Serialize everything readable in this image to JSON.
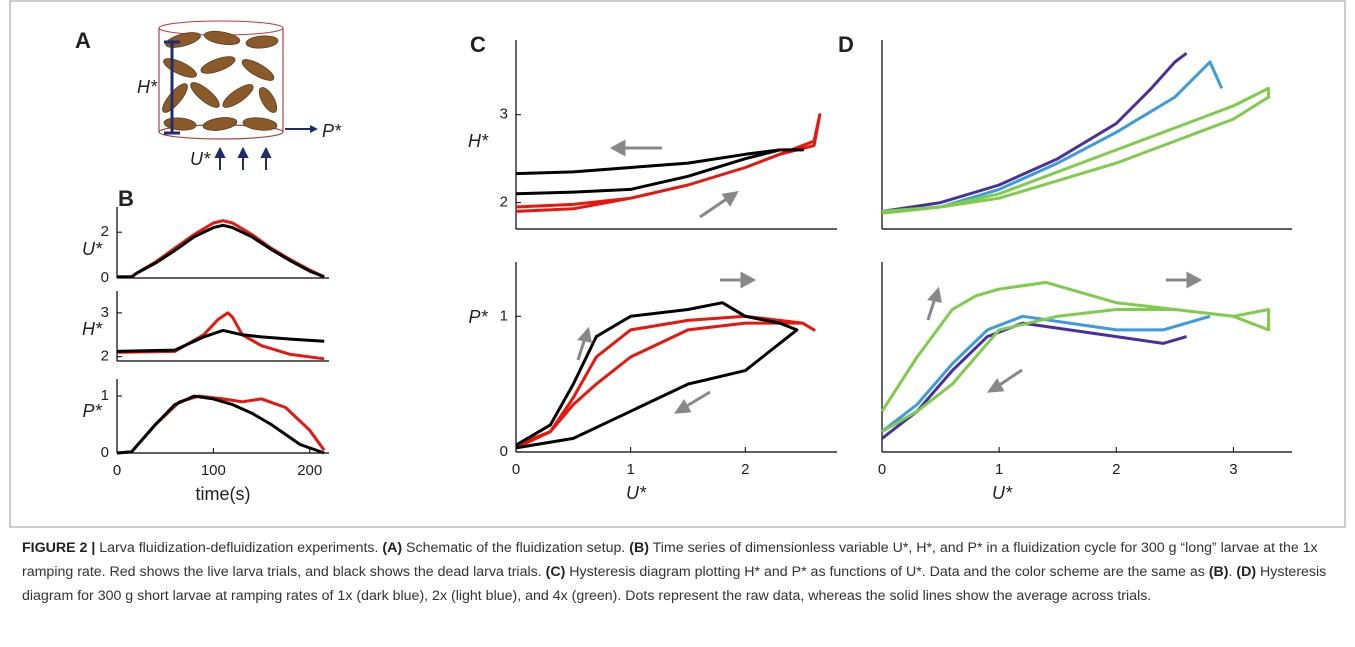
{
  "figure": {
    "panel_labels": [
      "A",
      "B",
      "C",
      "D"
    ],
    "schematic": {
      "height_label": "H*",
      "pressure_label": "P*",
      "flow_label": "U*"
    }
  },
  "chart_data": [
    {
      "type": "line",
      "ylabel": "U*",
      "xlim": [
        0,
        220
      ],
      "ylim": [
        0,
        3.1
      ],
      "yticks": [
        0,
        2
      ],
      "series": [
        {
          "color": "#e8160c",
          "x": [
            0,
            15,
            20,
            40,
            60,
            80,
            100,
            110,
            120,
            140,
            160,
            180,
            200,
            215
          ],
          "values": [
            0.05,
            0.05,
            0.2,
            0.7,
            1.3,
            1.9,
            2.4,
            2.5,
            2.4,
            1.9,
            1.3,
            0.8,
            0.35,
            0.05
          ]
        },
        {
          "color": "#000000",
          "x": [
            0,
            15,
            20,
            40,
            60,
            80,
            100,
            110,
            120,
            140,
            160,
            180,
            200,
            215
          ],
          "values": [
            0.05,
            0.05,
            0.2,
            0.65,
            1.2,
            1.8,
            2.2,
            2.3,
            2.2,
            1.8,
            1.25,
            0.75,
            0.3,
            0.05
          ]
        }
      ]
    },
    {
      "type": "line",
      "ylabel": "H*",
      "xlim": [
        0,
        220
      ],
      "ylim": [
        1.9,
        3.5
      ],
      "yticks": [
        2,
        3
      ],
      "series": [
        {
          "color": "#e8160c",
          "x": [
            0,
            60,
            90,
            105,
            115,
            120,
            130,
            150,
            180,
            215
          ],
          "values": [
            2.1,
            2.12,
            2.5,
            2.85,
            3.0,
            2.9,
            2.5,
            2.25,
            2.05,
            1.95
          ]
        },
        {
          "color": "#000000",
          "x": [
            0,
            60,
            90,
            110,
            130,
            150,
            180,
            215
          ],
          "values": [
            2.12,
            2.15,
            2.45,
            2.6,
            2.5,
            2.45,
            2.4,
            2.35
          ]
        }
      ]
    },
    {
      "type": "line",
      "ylabel": "P*",
      "xlim": [
        0,
        220
      ],
      "ylim": [
        0,
        1.3
      ],
      "yticks": [
        0,
        1
      ],
      "xticks": [
        0,
        100,
        200
      ],
      "xlabel": "time(s)",
      "series": [
        {
          "color": "#e8160c",
          "x": [
            0,
            15,
            40,
            65,
            85,
            110,
            130,
            150,
            175,
            200,
            215
          ],
          "values": [
            0,
            0.02,
            0.5,
            0.9,
            1.0,
            0.95,
            0.9,
            0.95,
            0.8,
            0.4,
            0.05
          ]
        },
        {
          "color": "#000000",
          "x": [
            0,
            15,
            40,
            60,
            80,
            100,
            120,
            140,
            160,
            190,
            215
          ],
          "values": [
            0,
            0.02,
            0.5,
            0.85,
            1.0,
            0.95,
            0.85,
            0.7,
            0.5,
            0.15,
            0
          ]
        }
      ]
    },
    {
      "type": "line",
      "ylabel": "H*",
      "xlim": [
        0,
        2.8
      ],
      "ylim": [
        1.7,
        3.85
      ],
      "yticks": [
        2,
        3
      ],
      "series": [
        {
          "color": "#e8160c",
          "x": [
            0,
            0.5,
            1,
            1.5,
            2,
            2.3,
            2.6,
            2.65,
            2.6,
            2.3,
            2,
            1.5,
            1,
            0.5,
            0
          ],
          "values": [
            1.95,
            1.98,
            2.05,
            2.2,
            2.4,
            2.55,
            2.7,
            3.0,
            2.65,
            2.55,
            2.4,
            2.2,
            2.05,
            1.93,
            1.9
          ]
        },
        {
          "color": "#000000",
          "x": [
            0,
            0.5,
            1,
            1.5,
            2,
            2.3,
            2.5,
            2.3,
            2,
            1.5,
            1,
            0.5,
            0
          ],
          "values": [
            2.1,
            2.12,
            2.15,
            2.3,
            2.5,
            2.6,
            2.6,
            2.6,
            2.55,
            2.45,
            2.4,
            2.35,
            2.33
          ]
        }
      ]
    },
    {
      "type": "line",
      "ylabel": "P*",
      "xlim": [
        0,
        2.8
      ],
      "ylim": [
        0,
        1.4
      ],
      "yticks": [
        0,
        1
      ],
      "xticks": [
        0,
        1,
        2
      ],
      "xlabel": "U*",
      "series": [
        {
          "color": "#e8160c",
          "x": [
            0,
            0.3,
            0.5,
            0.7,
            1,
            1.5,
            2,
            2.5,
            2.6,
            2.5,
            2,
            1.5,
            1,
            0.7,
            0.5,
            0.3,
            0
          ],
          "values": [
            0.05,
            0.15,
            0.4,
            0.7,
            0.9,
            0.97,
            1.0,
            0.95,
            0.9,
            0.95,
            0.95,
            0.9,
            0.7,
            0.5,
            0.35,
            0.15,
            0.03
          ]
        },
        {
          "color": "#000000",
          "x": [
            0,
            0.3,
            0.5,
            0.7,
            1,
            1.5,
            1.8,
            2,
            2.3,
            2.45,
            2.3,
            2,
            1.5,
            1,
            0.5,
            0
          ],
          "values": [
            0.05,
            0.2,
            0.5,
            0.85,
            1.0,
            1.05,
            1.1,
            1.0,
            0.95,
            0.9,
            0.8,
            0.6,
            0.5,
            0.3,
            0.1,
            0.03
          ]
        }
      ]
    },
    {
      "type": "line",
      "xlim": [
        0,
        3.5
      ],
      "ylim": [
        1.7,
        3.85
      ],
      "series": [
        {
          "color": "#4b2ea0",
          "x": [
            0,
            0.5,
            1,
            1.5,
            2,
            2.3,
            2.5,
            2.6
          ],
          "values": [
            1.9,
            2.0,
            2.2,
            2.5,
            2.9,
            3.3,
            3.6,
            3.7
          ]
        },
        {
          "color": "#3a9be0",
          "x": [
            0,
            0.5,
            1,
            1.5,
            2,
            2.5,
            2.8,
            2.9
          ],
          "values": [
            1.9,
            1.95,
            2.15,
            2.45,
            2.8,
            3.2,
            3.6,
            3.3
          ]
        },
        {
          "color": "#7dcd4a",
          "x": [
            0,
            0.5,
            1,
            1.5,
            2,
            2.5,
            3,
            3.3,
            3.3,
            3,
            2.5,
            2,
            1.5,
            1,
            0.5,
            0
          ],
          "values": [
            1.9,
            1.95,
            2.1,
            2.35,
            2.6,
            2.85,
            3.1,
            3.3,
            3.2,
            2.95,
            2.7,
            2.45,
            2.25,
            2.05,
            1.95,
            1.88
          ]
        }
      ]
    },
    {
      "type": "line",
      "xlim": [
        0,
        3.5
      ],
      "ylim": [
        0,
        1.4
      ],
      "xticks": [
        0,
        1,
        2,
        3
      ],
      "xlabel": "U*",
      "series": [
        {
          "color": "#4b2ea0",
          "x": [
            0,
            0.3,
            0.6,
            0.9,
            1.2,
            1.6,
            2,
            2.4,
            2.6
          ],
          "values": [
            0.1,
            0.3,
            0.6,
            0.85,
            0.95,
            0.9,
            0.85,
            0.8,
            0.85
          ]
        },
        {
          "color": "#3a9be0",
          "x": [
            0,
            0.3,
            0.6,
            0.9,
            1.2,
            1.6,
            2,
            2.4,
            2.8
          ],
          "values": [
            0.15,
            0.35,
            0.65,
            0.9,
            1.0,
            0.95,
            0.9,
            0.9,
            1.0
          ]
        },
        {
          "color": "#7dcd4a",
          "x": [
            0,
            0.3,
            0.6,
            0.8,
            1.0,
            1.4,
            2,
            2.5,
            3,
            3.3,
            3.3,
            3,
            2.5,
            2,
            1.5,
            1,
            0.6,
            0.3,
            0
          ],
          "values": [
            0.3,
            0.7,
            1.05,
            1.15,
            1.2,
            1.25,
            1.1,
            1.05,
            1.0,
            1.05,
            0.9,
            1.0,
            1.05,
            1.05,
            1.0,
            0.9,
            0.5,
            0.3,
            0.15
          ]
        }
      ]
    }
  ],
  "caption": [
    {
      "text": "FIGURE 2 |",
      "bold": true
    },
    {
      "text": " Larva fluidization-defluidization experiments. ",
      "bold": false
    },
    {
      "text": "(A)",
      "bold": true
    },
    {
      "text": " Schematic of the fluidization setup. ",
      "bold": false
    },
    {
      "text": "(B)",
      "bold": true
    },
    {
      "text": " Time series of dimensionless variable U*, H*, and P* in a fluidization cycle for 300 g “long” larvae at the 1x ramping rate. Red shows the live larva trials, and black shows the dead larva trials. ",
      "bold": false
    },
    {
      "text": "(C)",
      "bold": true
    },
    {
      "text": " Hysteresis diagram plotting H* and P* as functions of U*. Data and the color scheme are the same as ",
      "bold": false
    },
    {
      "text": "(B)",
      "bold": true
    },
    {
      "text": ". ",
      "bold": false
    },
    {
      "text": "(D)",
      "bold": true
    },
    {
      "text": " Hysteresis diagram for 300 g short larvae at ramping rates of 1x (dark blue), 2x (light blue), and 4x (green). Dots represent the raw data, whereas the solid lines show the average across trials.",
      "bold": false
    }
  ]
}
